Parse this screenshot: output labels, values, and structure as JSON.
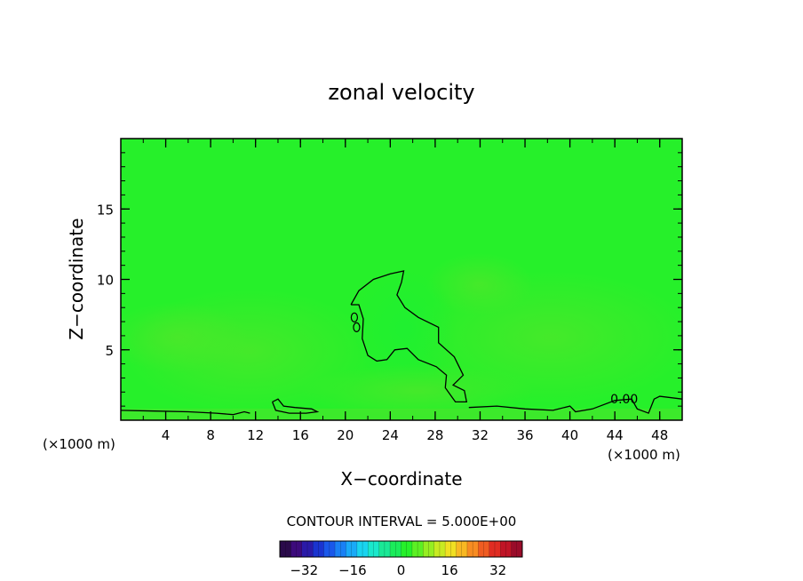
{
  "chart_data": {
    "type": "heatmap",
    "title": "zonal velocity",
    "xlabel": "X−coordinate",
    "ylabel": "Z−coordinate",
    "x_unit_left": "(×1000 m)",
    "x_unit_right": "(×1000 m)",
    "xlim": [
      0,
      50
    ],
    "ylim": [
      0,
      20
    ],
    "xticks": [
      4,
      8,
      12,
      16,
      20,
      24,
      28,
      32,
      36,
      40,
      44,
      48
    ],
    "yticks": [
      5,
      10,
      15
    ],
    "grid": false,
    "field_background": "#26f02a",
    "contours": [
      {
        "label": "",
        "points": [
          [
            20.5,
            8.2
          ],
          [
            21.2,
            9.2
          ],
          [
            22.5,
            10.0
          ],
          [
            24.0,
            10.4
          ],
          [
            25.2,
            10.6
          ],
          [
            25.0,
            9.8
          ],
          [
            24.6,
            8.9
          ],
          [
            25.3,
            8.0
          ],
          [
            26.5,
            7.3
          ],
          [
            28.3,
            6.6
          ],
          [
            28.3,
            5.5
          ],
          [
            29.7,
            4.5
          ],
          [
            30.5,
            3.2
          ],
          [
            29.6,
            2.5
          ],
          [
            30.6,
            2.1
          ],
          [
            30.8,
            1.3
          ],
          [
            29.8,
            1.3
          ],
          [
            28.9,
            2.3
          ],
          [
            29.0,
            3.2
          ],
          [
            28.1,
            3.8
          ],
          [
            26.5,
            4.3
          ],
          [
            25.5,
            5.1
          ],
          [
            24.4,
            5.0
          ],
          [
            23.7,
            4.3
          ],
          [
            22.8,
            4.2
          ],
          [
            22.0,
            4.6
          ],
          [
            21.5,
            5.8
          ],
          [
            21.6,
            7.2
          ],
          [
            21.2,
            8.2
          ],
          [
            20.5,
            8.2
          ]
        ]
      },
      {
        "label": "",
        "points": [
          [
            0,
            0.7
          ],
          [
            3.0,
            0.65
          ],
          [
            6.0,
            0.6
          ],
          [
            8.5,
            0.5
          ],
          [
            10.0,
            0.4
          ],
          [
            11.0,
            0.6
          ],
          [
            11.5,
            0.5
          ]
        ]
      },
      {
        "label": "",
        "points": [
          [
            13.5,
            1.3
          ],
          [
            14.0,
            1.5
          ],
          [
            14.5,
            1.0
          ],
          [
            15.5,
            0.9
          ],
          [
            17.0,
            0.8
          ],
          [
            17.5,
            0.6
          ],
          [
            16.5,
            0.5
          ],
          [
            15.0,
            0.5
          ],
          [
            13.8,
            0.7
          ],
          [
            13.5,
            1.3
          ]
        ]
      },
      {
        "label": "0.00",
        "points": [
          [
            31.0,
            0.9
          ],
          [
            33.5,
            1.0
          ],
          [
            36.0,
            0.8
          ],
          [
            38.5,
            0.7
          ],
          [
            40.0,
            1.0
          ],
          [
            40.5,
            0.6
          ],
          [
            42.0,
            0.8
          ],
          [
            44.0,
            1.4
          ],
          [
            45.5,
            1.5
          ],
          [
            46.0,
            0.8
          ],
          [
            47.0,
            0.5
          ],
          [
            47.5,
            1.5
          ],
          [
            48.0,
            1.7
          ],
          [
            50.0,
            1.5
          ]
        ]
      }
    ],
    "contour_interval_text": "CONTOUR INTERVAL = 5.000E+00",
    "colorbar": {
      "range": [
        -40,
        40
      ],
      "tick_labels": [
        "−32",
        "−16",
        "0",
        "16",
        "32"
      ],
      "tick_values": [
        -32,
        -16,
        0,
        16,
        32
      ],
      "colors": [
        "#2a0a4a",
        "#3c0a7c",
        "#2a1aa8",
        "#1a34d0",
        "#1a58ea",
        "#1a80f5",
        "#1aaaf8",
        "#1ad4f0",
        "#1ae8cc",
        "#1ae896",
        "#1aec5a",
        "#26f02a",
        "#5cf024",
        "#96ee22",
        "#c8ea22",
        "#f0e022",
        "#f8b822",
        "#f88c22",
        "#f05c22",
        "#e02c22",
        "#c01426",
        "#9a0c2a"
      ]
    }
  }
}
